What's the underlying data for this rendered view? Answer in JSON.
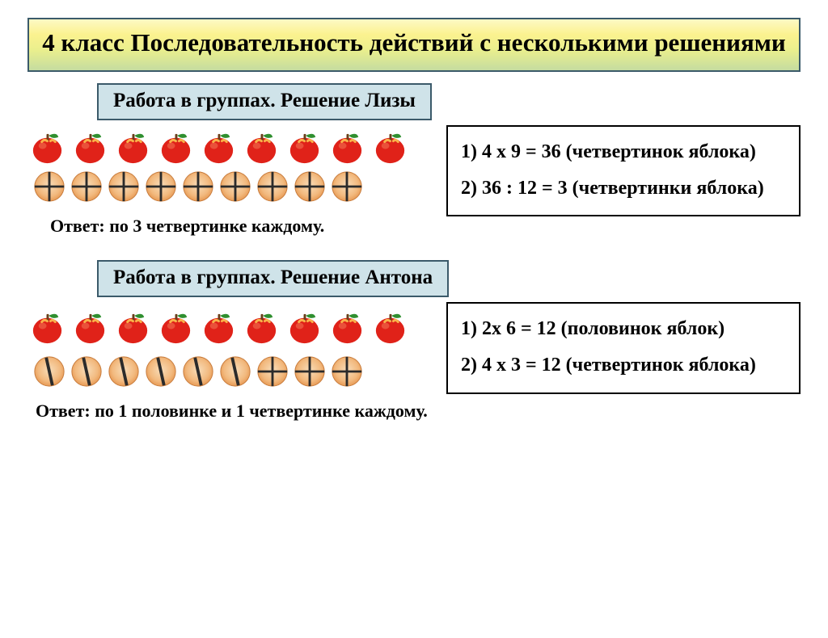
{
  "title": "4 класс Последовательность действий с несколькими решениями",
  "section1": {
    "label": "Работа в группах. Решение Лизы",
    "apples_count": 9,
    "circles_count": 9,
    "circle_style": "quarters",
    "answer": "Ответ:  по 3 четвертинке каждому.",
    "math_line1": "1) 4 x 9 = 36 (четвертинок яблока)",
    "math_line2": "2) 36 : 12 = 3 (четвертинки яблока)"
  },
  "section2": {
    "label": "Работа в группах. Решение Антона",
    "apples_count": 9,
    "halves_count": 6,
    "quarters_count": 3,
    "answer": "Ответ:  по 1 половинке и 1 четвертинке каждому.",
    "math_line1": "1) 2x 6 = 12 (половинок яблок)",
    "math_line2": "2) 4 x 3 = 12 (четвертинок яблока)"
  },
  "colors": {
    "apple_body": "#e02219",
    "apple_highlight": "#f9b24a",
    "apple_leaf": "#2f8f2f",
    "apple_stem": "#6b3e1a",
    "circle_fill_outer": "#f2a96c",
    "circle_fill_inner": "#f8dcb8",
    "divider_stroke": "#2b2b2b",
    "title_border": "#3b5a6a",
    "label_bg": "#cfe3e9",
    "math_border": "#000000",
    "background": "#ffffff",
    "font_color": "#000000"
  },
  "fonts": {
    "title_size": 31,
    "label_size": 25,
    "math_size": 24,
    "answer_size": 22,
    "family": "Times New Roman",
    "weight": "bold"
  }
}
